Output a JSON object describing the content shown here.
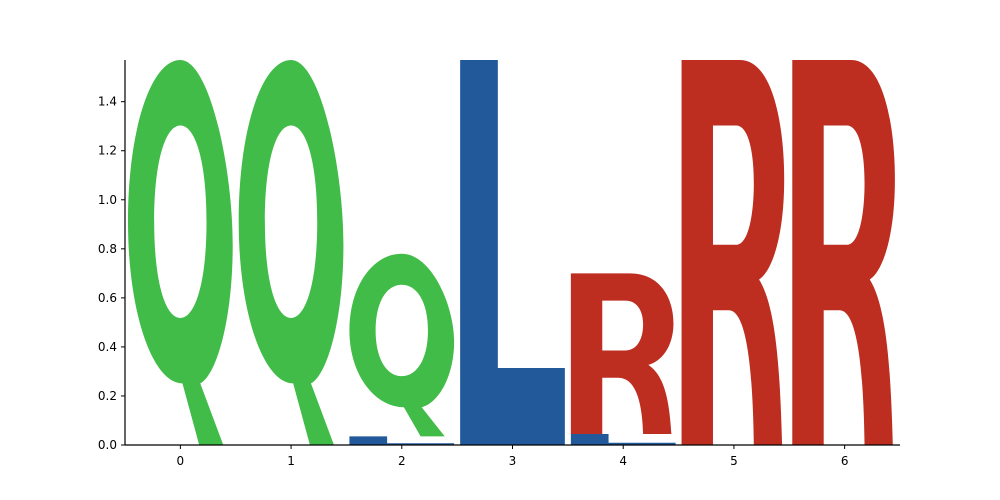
{
  "chart_data": {
    "type": "logo",
    "title": "",
    "xlabel": "",
    "ylabel": "",
    "xlim": [
      -0.5,
      6.5
    ],
    "ylim": [
      0,
      1.57
    ],
    "x_ticks": [
      "0",
      "1",
      "2",
      "3",
      "4",
      "5",
      "6"
    ],
    "y_ticks": [
      "0.0",
      "0.2",
      "0.4",
      "0.6",
      "0.8",
      "1.0",
      "1.2",
      "1.4"
    ],
    "grid": false,
    "colors": {
      "Q": "#41bc48",
      "L": "#22599b",
      "R": "#bd2e20"
    },
    "positions": [
      {
        "x": 0,
        "letters": [
          {
            "char": "Q",
            "value": 1.57
          }
        ]
      },
      {
        "x": 1,
        "letters": [
          {
            "char": "Q",
            "value": 1.57
          }
        ]
      },
      {
        "x": 2,
        "letters": [
          {
            "char": "L",
            "value": 0.035
          },
          {
            "char": "Q",
            "value": 0.745
          }
        ]
      },
      {
        "x": 3,
        "letters": [
          {
            "char": "L",
            "value": 1.57
          }
        ]
      },
      {
        "x": 4,
        "letters": [
          {
            "char": "L",
            "value": 0.045
          },
          {
            "char": "R",
            "value": 0.655
          }
        ]
      },
      {
        "x": 5,
        "letters": [
          {
            "char": "R",
            "value": 1.57
          }
        ]
      },
      {
        "x": 6,
        "letters": [
          {
            "char": "R",
            "value": 1.57
          }
        ]
      }
    ]
  }
}
